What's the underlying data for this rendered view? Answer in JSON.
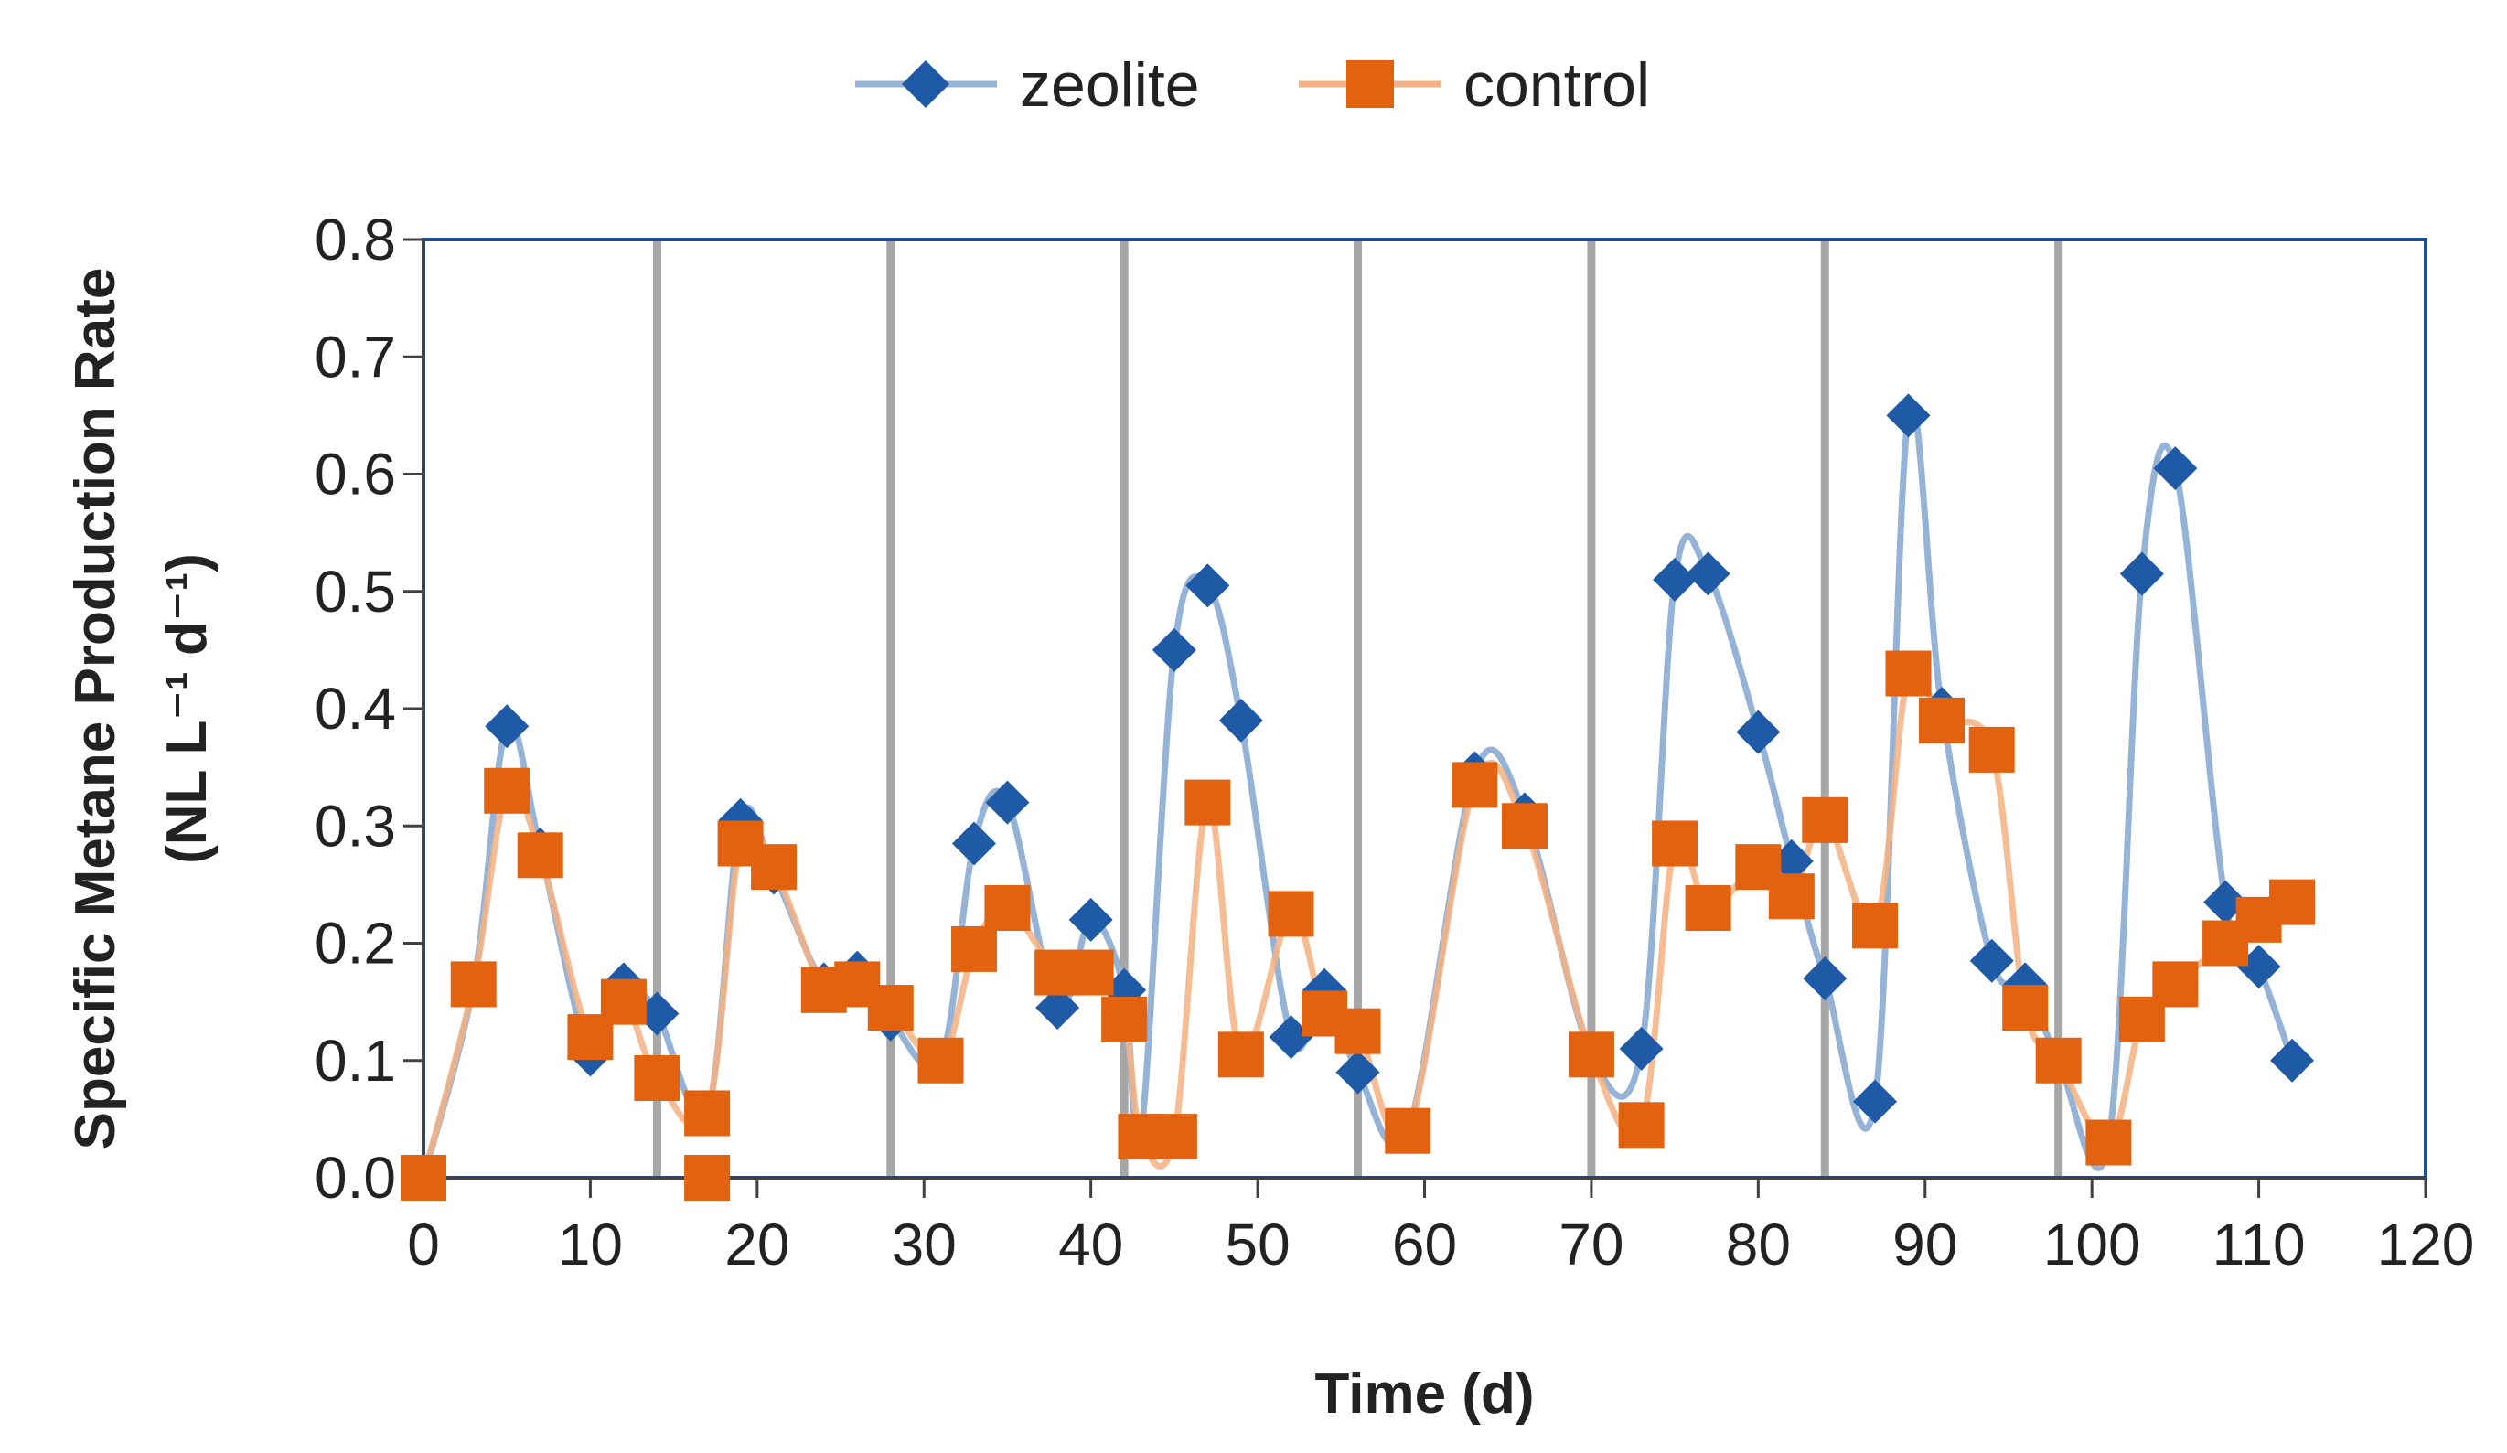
{
  "chart_data": {
    "type": "line",
    "title": "",
    "xlabel": "Time (d)",
    "ylabel_line1": "Specific Metane Production Rate",
    "ylabel_line2": "(NL L⁻¹ d⁻¹)",
    "xlim": [
      0,
      120
    ],
    "ylim": [
      0,
      0.8
    ],
    "x_ticks": [
      "0",
      "10",
      "20",
      "30",
      "40",
      "50",
      "60",
      "70",
      "80",
      "90",
      "100",
      "110",
      "120"
    ],
    "y_ticks": [
      "0.0",
      "0.1",
      "0.2",
      "0.3",
      "0.4",
      "0.5",
      "0.6",
      "0.7",
      "0.8"
    ],
    "x_tick_values": [
      0,
      10,
      20,
      30,
      40,
      50,
      60,
      70,
      80,
      90,
      100,
      110,
      120
    ],
    "y_tick_values": [
      0,
      0.1,
      0.2,
      0.3,
      0.4,
      0.5,
      0.6,
      0.7,
      0.8
    ],
    "period_lines": [
      14,
      28,
      42,
      56,
      70,
      84,
      98
    ],
    "legend_position": "top-center",
    "series": [
      {
        "name": "zeolite",
        "marker": "diamond",
        "marker_color": "#1f5aa6",
        "line_color": "#95b3d7",
        "x": [
          0,
          3,
          5,
          7,
          10,
          12,
          14,
          17,
          19,
          21,
          24,
          26,
          28,
          31,
          33,
          35,
          38,
          40,
          42,
          43,
          45,
          47,
          49,
          52,
          54,
          56,
          59,
          63,
          66,
          70,
          73,
          75,
          77,
          80,
          82,
          84,
          87,
          89,
          91,
          94,
          96,
          98,
          101,
          103,
          105,
          108,
          110,
          112
        ],
        "y": [
          0.0,
          0.165,
          0.385,
          0.28,
          0.105,
          0.165,
          0.14,
          0.055,
          0.305,
          0.26,
          0.165,
          0.175,
          0.135,
          0.1,
          0.285,
          0.32,
          0.145,
          0.22,
          0.16,
          0.035,
          0.45,
          0.505,
          0.39,
          0.12,
          0.16,
          0.09,
          0.04,
          0.345,
          0.31,
          0.105,
          0.11,
          0.51,
          0.515,
          0.38,
          0.27,
          0.17,
          0.065,
          0.65,
          0.4,
          0.185,
          0.165,
          0.1,
          0.03,
          0.515,
          0.605,
          0.235,
          0.18,
          0.1
        ]
      },
      {
        "name": "control",
        "marker": "square",
        "marker_color": "#e2620f",
        "line_color": "#f4b183",
        "x": [
          0,
          3,
          5,
          7,
          10,
          12,
          14,
          17,
          19,
          21,
          24,
          26,
          28,
          31,
          33,
          35,
          38,
          40,
          42,
          43,
          45,
          47,
          49,
          52,
          54,
          56,
          59,
          63,
          66,
          70,
          73,
          75,
          77,
          80,
          82,
          84,
          87,
          89,
          91,
          94,
          96,
          98,
          101,
          103,
          105,
          108,
          110,
          112
        ],
        "y": [
          0.0,
          0.165,
          0.33,
          0.275,
          0.12,
          0.15,
          0.085,
          0.055,
          0.285,
          0.265,
          0.16,
          0.165,
          0.145,
          0.1,
          0.195,
          0.23,
          0.175,
          0.175,
          0.135,
          0.035,
          0.035,
          0.32,
          0.105,
          0.225,
          0.14,
          0.125,
          0.04,
          0.335,
          0.3,
          0.105,
          0.045,
          0.285,
          0.23,
          0.265,
          0.24,
          0.305,
          0.215,
          0.43,
          0.39,
          0.365,
          0.145,
          0.1,
          0.03,
          0.135,
          0.165,
          0.2,
          0.22,
          0.235
        ]
      }
    ],
    "extra_control_points": [
      {
        "x": 17,
        "y": 0.0
      }
    ],
    "colors": {
      "frame": "#1f4e9c",
      "period_line": "#a6a6a6",
      "axis": "#404040"
    }
  }
}
